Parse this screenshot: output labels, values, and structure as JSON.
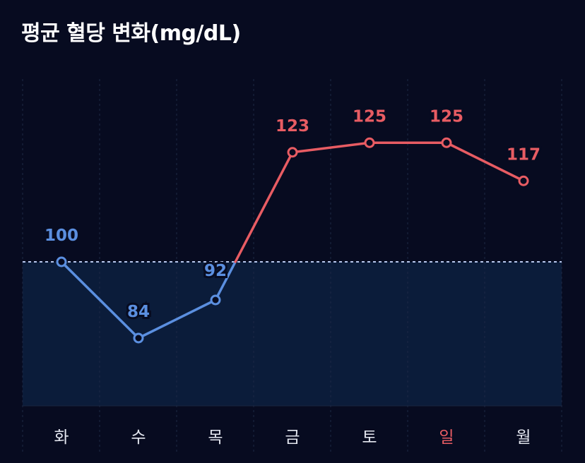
{
  "header": {
    "title": "평균 혈당 변화(mg/dL)"
  },
  "colors": {
    "background": "#070b20",
    "normal": "#5b8fe0",
    "high": "#e85c63",
    "zone": "#0b1c3a",
    "threshold_line": "#b8c8ee",
    "day_label": "#e4e7f0",
    "highlight_day": "#e85c63"
  },
  "chart_data": {
    "type": "line",
    "title": "평균 혈당 변화(mg/dL)",
    "categories": [
      "화",
      "수",
      "목",
      "금",
      "토",
      "일",
      "월"
    ],
    "series": [
      {
        "values": [
          100,
          84,
          92,
          123,
          125,
          125,
          117
        ]
      }
    ],
    "threshold": 100,
    "highlight_category": "일",
    "ylim": [
      70,
      130
    ],
    "grid": "vertical dashed"
  }
}
